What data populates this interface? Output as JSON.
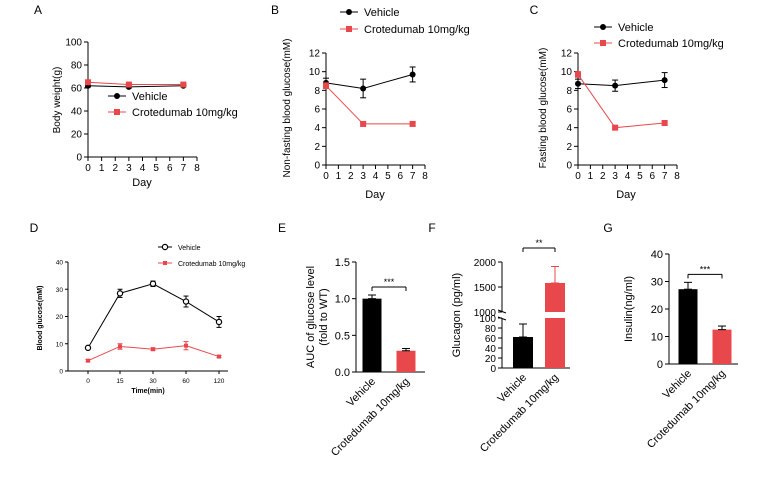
{
  "colors": {
    "vehicle": "#000000",
    "treatment": "#e8474c",
    "axis": "#000000"
  },
  "chart_data": [
    {
      "panel": "A",
      "type": "line",
      "ylabel": "Body weight(g)",
      "xlabel": "Day",
      "xlim": [
        0,
        8
      ],
      "ylim": [
        0,
        100
      ],
      "xticks": [
        "0",
        "1",
        "2",
        "3",
        "4",
        "5",
        "6",
        "7",
        "8"
      ],
      "yticks": [
        "0",
        "20",
        "40",
        "60",
        "80",
        "100"
      ],
      "legend": "center",
      "series": [
        {
          "name": "Vehicle",
          "marker": "circle",
          "x": [
            0,
            3,
            7
          ],
          "y": [
            62,
            61,
            62
          ],
          "err": [
            1,
            1,
            1
          ]
        },
        {
          "name": "Crotedumab 10mg/kg",
          "marker": "square",
          "x": [
            0,
            3,
            7
          ],
          "y": [
            65,
            63,
            63
          ],
          "err": [
            1,
            1,
            1
          ]
        }
      ]
    },
    {
      "panel": "B",
      "type": "line",
      "ylabel": "Non-fasting blood glucose(mM)",
      "xlabel": "Day",
      "xlim": [
        0,
        8
      ],
      "ylim": [
        0,
        12
      ],
      "xticks": [
        "0",
        "1",
        "2",
        "3",
        "4",
        "5",
        "6",
        "7",
        "8"
      ],
      "yticks": [
        "0",
        "2",
        "4",
        "6",
        "8",
        "10",
        "12"
      ],
      "legend": "top",
      "series": [
        {
          "name": "Vehicle",
          "marker": "circle",
          "x": [
            0,
            3,
            7
          ],
          "y": [
            8.8,
            8.2,
            9.7
          ],
          "err": [
            0.5,
            1.0,
            0.8
          ]
        },
        {
          "name": "Crotedumab 10mg/kg",
          "marker": "square",
          "x": [
            0,
            3,
            7
          ],
          "y": [
            8.5,
            4.4,
            4.4
          ],
          "err": [
            0.3,
            0.2,
            0.2
          ]
        }
      ]
    },
    {
      "panel": "C",
      "type": "line",
      "ylabel": "Fasting blood glucose(mM)",
      "xlabel": "Day",
      "xlim": [
        0,
        8
      ],
      "ylim": [
        0,
        12
      ],
      "xticks": [
        "0",
        "1",
        "2",
        "3",
        "4",
        "5",
        "6",
        "7",
        "8"
      ],
      "yticks": [
        "0",
        "2",
        "4",
        "6",
        "8",
        "10",
        "12"
      ],
      "legend": "top",
      "series": [
        {
          "name": "Vehicle",
          "marker": "circle",
          "x": [
            0,
            3,
            7
          ],
          "y": [
            8.7,
            8.5,
            9.1
          ],
          "err": [
            0.5,
            0.6,
            0.8
          ]
        },
        {
          "name": "Crotedumab 10mg/kg",
          "marker": "square",
          "x": [
            0,
            3,
            7
          ],
          "y": [
            9.7,
            4.0,
            4.5
          ],
          "err": [
            0.3,
            0.2,
            0.2
          ]
        }
      ]
    },
    {
      "panel": "D",
      "type": "line",
      "ylabel": "Blood glucose(mM)",
      "xlabel": "Time(min)",
      "categories": [
        "0",
        "15",
        "30",
        "60",
        "120"
      ],
      "ylim": [
        0,
        40
      ],
      "yticks": [
        "0",
        "10",
        "20",
        "30",
        "40"
      ],
      "legend": "top",
      "series": [
        {
          "name": "Vehicle",
          "marker": "open-circle",
          "y": [
            8.5,
            28.5,
            32,
            25.5,
            18
          ],
          "err": [
            0.5,
            1.5,
            1.0,
            2.0,
            2.0
          ]
        },
        {
          "name": "Crotedumab 10mg/kg",
          "marker": "small-square",
          "y": [
            3.8,
            9,
            8,
            9.3,
            5.3
          ],
          "err": [
            0.4,
            1.0,
            0.5,
            1.5,
            0.4
          ]
        }
      ]
    },
    {
      "panel": "E",
      "type": "bar",
      "ylabel": "AUC of glucose level (fold to WT)",
      "categories": [
        "Vehicle",
        "Crotedumab 10mg/kg"
      ],
      "values": [
        1.0,
        0.29
      ],
      "err": [
        0.05,
        0.03
      ],
      "ylim": [
        0,
        1.5
      ],
      "yticks": [
        "0.0",
        "0.5",
        "1.0",
        "1.5"
      ],
      "significance": "***"
    },
    {
      "panel": "F",
      "type": "bar",
      "ylabel": "Glucagon (pg/ml)",
      "categories": [
        "Vehicle",
        "Crotedumab 10mg/kg"
      ],
      "values": [
        62,
        1580
      ],
      "err": [
        26,
        330
      ],
      "axis_break": {
        "lower_max": 100,
        "upper_min": 1000,
        "upper_max": 2000
      },
      "yticks": [
        "0",
        "20",
        "40",
        "60",
        "80",
        "100",
        "1000",
        "1500",
        "2000"
      ],
      "significance": "**"
    },
    {
      "panel": "G",
      "type": "bar",
      "ylabel": "Insulin(ng/ml)",
      "categories": [
        "Vehicle",
        "Crotedumab 10mg/kg"
      ],
      "values": [
        27.2,
        12.5
      ],
      "err": [
        2.5,
        1.3
      ],
      "ylim": [
        0,
        40
      ],
      "yticks": [
        "0",
        "10",
        "20",
        "30",
        "40"
      ],
      "significance": "***"
    }
  ]
}
